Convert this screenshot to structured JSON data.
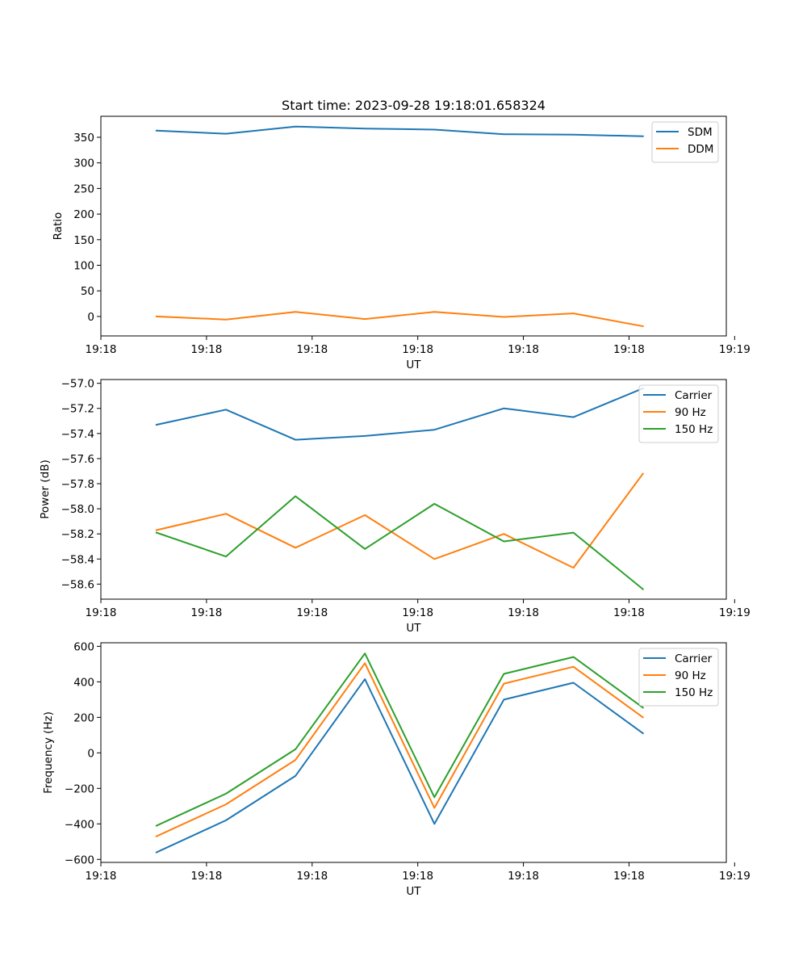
{
  "title": "Start time: 2023-09-28 19:18:01.658324",
  "chart_data": [
    {
      "type": "line",
      "title": "Start time: 2023-09-28 19:18:01.658324",
      "xlabel": "UT",
      "ylabel": "Ratio",
      "x": [
        1,
        2,
        3,
        4,
        5,
        6,
        7,
        8
      ],
      "xlim": [
        0.2,
        9.2
      ],
      "x_ticks": [
        0.2,
        1.72,
        3.24,
        4.76,
        6.28,
        7.8,
        9.32
      ],
      "x_tick_labels": [
        "19:18",
        "19:18",
        "19:18",
        "19:18",
        "19:18",
        "19:18",
        "19:19"
      ],
      "ylim": [
        -38,
        391
      ],
      "y_ticks": [
        0,
        50,
        100,
        150,
        200,
        250,
        300,
        350
      ],
      "y_tick_labels": [
        "0",
        "50",
        "100",
        "150",
        "200",
        "250",
        "300",
        "350"
      ],
      "legend": "top-right",
      "series": [
        {
          "name": "SDM",
          "color": "#1f77b4",
          "values": [
            363,
            357,
            371,
            367,
            365,
            356,
            355,
            352
          ]
        },
        {
          "name": "DDM",
          "color": "#ff7f0e",
          "values": [
            0,
            -6,
            9,
            -5,
            9,
            -1,
            6,
            -19
          ]
        }
      ]
    },
    {
      "type": "line",
      "xlabel": "UT",
      "ylabel": "Power (dB)",
      "x": [
        1,
        2,
        3,
        4,
        5,
        6,
        7,
        8
      ],
      "xlim": [
        0.2,
        9.2
      ],
      "x_ticks": [
        0.2,
        1.72,
        3.24,
        4.76,
        6.28,
        7.8,
        9.32
      ],
      "x_tick_labels": [
        "19:18",
        "19:18",
        "19:18",
        "19:18",
        "19:18",
        "19:18",
        "19:19"
      ],
      "ylim": [
        -58.72,
        -56.97
      ],
      "y_ticks": [
        -57.0,
        -57.2,
        -57.4,
        -57.6,
        -57.8,
        -58.0,
        -58.2,
        -58.4,
        -58.6
      ],
      "y_tick_labels": [
        "−57.0",
        "−57.2",
        "−57.4",
        "−57.6",
        "−57.8",
        "−58.0",
        "−58.2",
        "−58.4",
        "−58.6"
      ],
      "legend": "top-right",
      "series": [
        {
          "name": "Carrier",
          "color": "#1f77b4",
          "values": [
            -57.33,
            -57.21,
            -57.45,
            -57.42,
            -57.37,
            -57.2,
            -57.27,
            -57.04
          ]
        },
        {
          "name": "90 Hz",
          "color": "#ff7f0e",
          "values": [
            -58.17,
            -58.04,
            -58.31,
            -58.05,
            -58.4,
            -58.2,
            -58.47,
            -57.72
          ]
        },
        {
          "name": "150 Hz",
          "color": "#2ca02c",
          "values": [
            -58.19,
            -58.38,
            -57.9,
            -58.32,
            -57.96,
            -58.26,
            -58.19,
            -58.64
          ]
        }
      ]
    },
    {
      "type": "line",
      "xlabel": "UT",
      "ylabel": "Frequency (Hz)",
      "x": [
        1,
        2,
        3,
        4,
        5,
        6,
        7,
        8
      ],
      "xlim": [
        0.2,
        9.2
      ],
      "x_ticks": [
        0.2,
        1.72,
        3.24,
        4.76,
        6.28,
        7.8,
        9.32
      ],
      "x_tick_labels": [
        "19:18",
        "19:18",
        "19:18",
        "19:18",
        "19:18",
        "19:18",
        "19:19"
      ],
      "ylim": [
        -617,
        620
      ],
      "y_ticks": [
        600,
        400,
        200,
        0,
        -200,
        -400,
        -600
      ],
      "y_tick_labels": [
        "600",
        "400",
        "200",
        "0",
        "−200",
        "−400",
        "−600"
      ],
      "legend": "top-right",
      "series": [
        {
          "name": "Carrier",
          "color": "#1f77b4",
          "values": [
            -560,
            -380,
            -130,
            415,
            -400,
            300,
            395,
            110
          ]
        },
        {
          "name": "90 Hz",
          "color": "#ff7f0e",
          "values": [
            -470,
            -290,
            -40,
            505,
            -310,
            390,
            485,
            200
          ]
        },
        {
          "name": "150 Hz",
          "color": "#2ca02c",
          "values": [
            -410,
            -230,
            20,
            560,
            -250,
            445,
            540,
            255
          ]
        }
      ]
    }
  ]
}
